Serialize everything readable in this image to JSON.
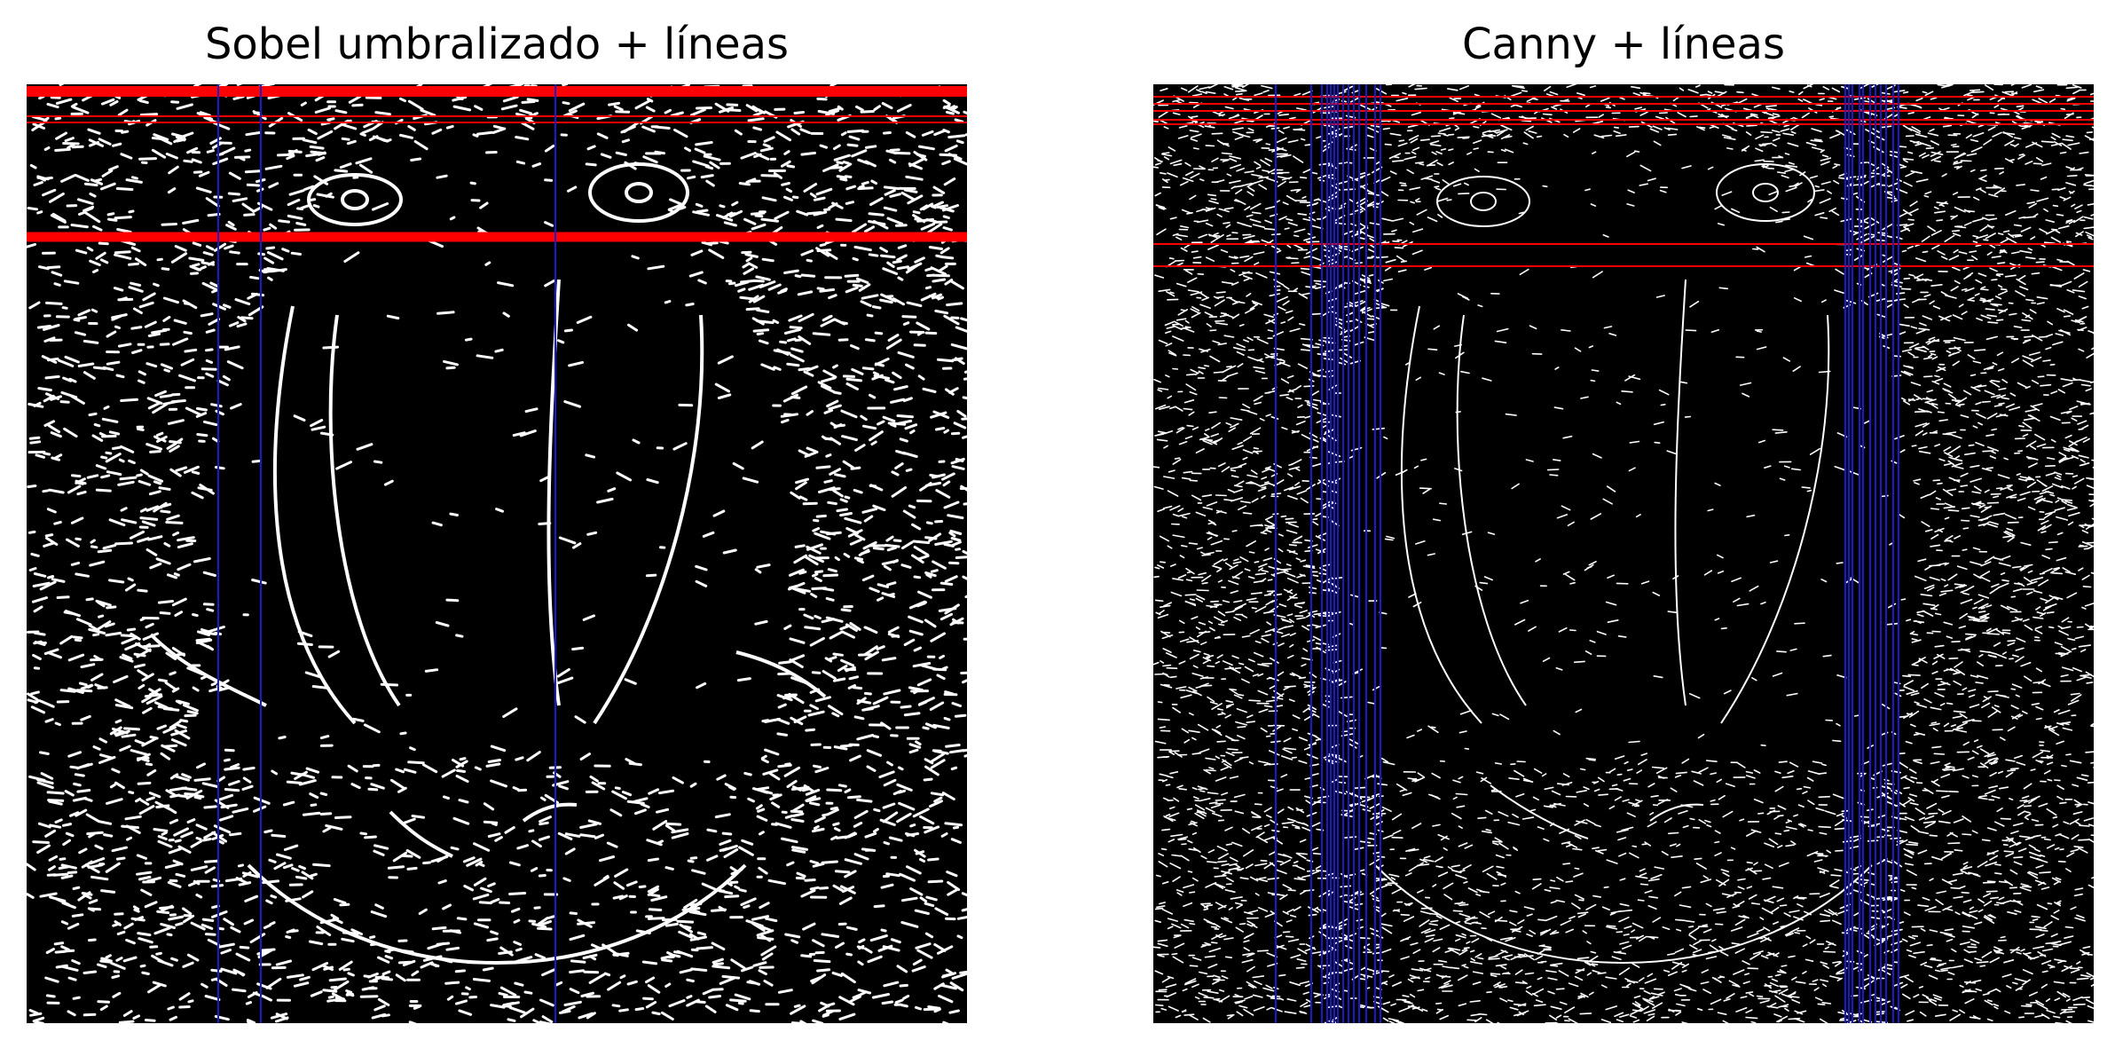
{
  "figure": {
    "panels": [
      {
        "title": "Sobel umbralizado + líneas",
        "image_alt": "Mapa de bordes Sobel umbralizado de un mandril con líneas detectadas",
        "overlay_colors": {
          "horizontal": "#ff0000",
          "vertical": "#0000cc",
          "edges": "#ffffff"
        }
      },
      {
        "title": "Canny + líneas",
        "image_alt": "Mapa de bordes Canny de un mandril con líneas detectadas",
        "overlay_colors": {
          "horizontal": "#ff0000",
          "vertical": "#0000cc",
          "edges": "#ffffff"
        }
      }
    ]
  }
}
